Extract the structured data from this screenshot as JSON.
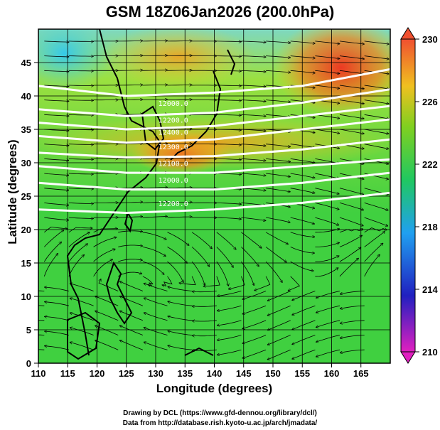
{
  "title": "GSM 18Z06Jan2026 (200.0hPa)",
  "chart_data": {
    "type": "heatmap",
    "title": "GSM 18Z06Jan2026 (200.0hPa)",
    "xlabel": "Longitude (degrees)",
    "ylabel": "Latitude  (degrees)",
    "xlim": [
      110,
      170
    ],
    "ylim": [
      0,
      50
    ],
    "x_ticks": [
      110,
      115,
      120,
      125,
      130,
      135,
      140,
      145,
      150,
      155,
      160,
      165
    ],
    "y_ticks": [
      0,
      5,
      10,
      15,
      20,
      25,
      30,
      35,
      40,
      45
    ],
    "grid": true,
    "colorbar": {
      "ticks": [
        210,
        214,
        218,
        222,
        226,
        230
      ],
      "range": [
        210,
        230
      ],
      "colors": [
        "#e020c0",
        "#2020c0",
        "#20a0f0",
        "#20c860",
        "#50d030",
        "#f0c020",
        "#f05030"
      ]
    },
    "contour_labels": [
      "12000.0",
      "12200.0",
      "12400.0",
      "12300.0",
      "12100.0",
      "12000.0",
      "12200.0"
    ],
    "contour_lines": [
      {
        "lon": [
          110,
          125,
          140,
          155,
          170
        ],
        "lat": [
          41.5,
          40.0,
          40.5,
          41.5,
          44.0
        ]
      },
      {
        "lon": [
          110,
          125,
          140,
          155,
          170
        ],
        "lat": [
          38.0,
          37.0,
          37.5,
          39.0,
          41.0
        ]
      },
      {
        "lon": [
          110,
          125,
          140,
          155,
          170
        ],
        "lat": [
          36.0,
          35.0,
          35.5,
          37.0,
          38.5
        ]
      },
      {
        "lon": [
          110,
          125,
          140,
          155,
          170
        ],
        "lat": [
          34.0,
          33.0,
          33.5,
          35.0,
          36.5
        ]
      },
      {
        "lon": [
          110,
          125,
          140,
          155,
          170
        ],
        "lat": [
          31.5,
          30.8,
          31.0,
          32.0,
          33.5
        ]
      },
      {
        "lon": [
          110,
          125,
          140,
          155,
          170
        ],
        "lat": [
          29.5,
          28.5,
          28.5,
          29.5,
          30.5
        ]
      },
      {
        "lon": [
          110,
          125,
          140,
          155,
          170
        ],
        "lat": [
          27.0,
          26.0,
          26.0,
          27.0,
          28.5
        ]
      },
      {
        "lon": [
          110,
          125,
          140,
          155,
          170
        ],
        "lat": [
          23.0,
          22.5,
          23.0,
          24.0,
          25.5
        ]
      }
    ]
  },
  "credits": {
    "line1": "Drawing by DCL (https://www.gfd-dennou.org/library/dcl/)",
    "line2": "Data from http://database.rish.kyoto-u.ac.jp/arch/jmadata/"
  }
}
